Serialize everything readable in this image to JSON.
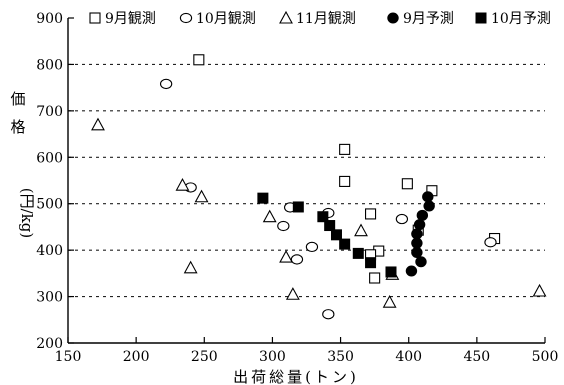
{
  "chart_data": {
    "type": "scatter",
    "title": "",
    "xlabel": "出荷総量(トン)",
    "ylabel": [
      "価",
      "格",
      "(円/kg)"
    ],
    "xlim": [
      150,
      500
    ],
    "ylim": [
      200,
      900
    ],
    "xticks": [
      150,
      200,
      250,
      300,
      350,
      400,
      450,
      500
    ],
    "yticks": [
      200,
      300,
      400,
      500,
      600,
      700,
      800,
      900
    ],
    "grid": "horizontal-dashed",
    "legend_placement": "top",
    "series": [
      {
        "name": "9月観測",
        "marker": "square-open",
        "points": [
          [
            246,
            810
          ],
          [
            353,
            617
          ],
          [
            353,
            548
          ],
          [
            372,
            478
          ],
          [
            399,
            543
          ],
          [
            417,
            528
          ],
          [
            378,
            398
          ],
          [
            372,
            390
          ],
          [
            375,
            340
          ],
          [
            407,
            443
          ],
          [
            463,
            425
          ]
        ]
      },
      {
        "name": "10月観測",
        "marker": "circle-open",
        "points": [
          [
            222,
            758
          ],
          [
            240,
            535
          ],
          [
            313,
            492
          ],
          [
            308,
            452
          ],
          [
            318,
            380
          ],
          [
            329,
            407
          ],
          [
            341,
            480
          ],
          [
            341,
            262
          ],
          [
            395,
            467
          ],
          [
            460,
            417
          ]
        ]
      },
      {
        "name": "11月観測",
        "marker": "triangle-open",
        "points": [
          [
            172,
            670
          ],
          [
            234,
            540
          ],
          [
            248,
            515
          ],
          [
            240,
            362
          ],
          [
            298,
            472
          ],
          [
            310,
            385
          ],
          [
            315,
            305
          ],
          [
            365,
            442
          ],
          [
            386,
            288
          ],
          [
            388,
            348
          ],
          [
            496,
            312
          ]
        ]
      },
      {
        "name": "9月予測",
        "marker": "circle-filled",
        "points": [
          [
            414,
            515
          ],
          [
            415,
            495
          ],
          [
            410,
            475
          ],
          [
            408,
            455
          ],
          [
            406,
            435
          ],
          [
            406,
            415
          ],
          [
            406,
            395
          ],
          [
            409,
            375
          ],
          [
            402,
            355
          ]
        ]
      },
      {
        "name": "10月予測",
        "marker": "square-filled",
        "points": [
          [
            293,
            512
          ],
          [
            319,
            493
          ],
          [
            337,
            472
          ],
          [
            342,
            453
          ],
          [
            347,
            433
          ],
          [
            353,
            413
          ],
          [
            363,
            393
          ],
          [
            372,
            373
          ],
          [
            387,
            353
          ]
        ]
      }
    ]
  }
}
